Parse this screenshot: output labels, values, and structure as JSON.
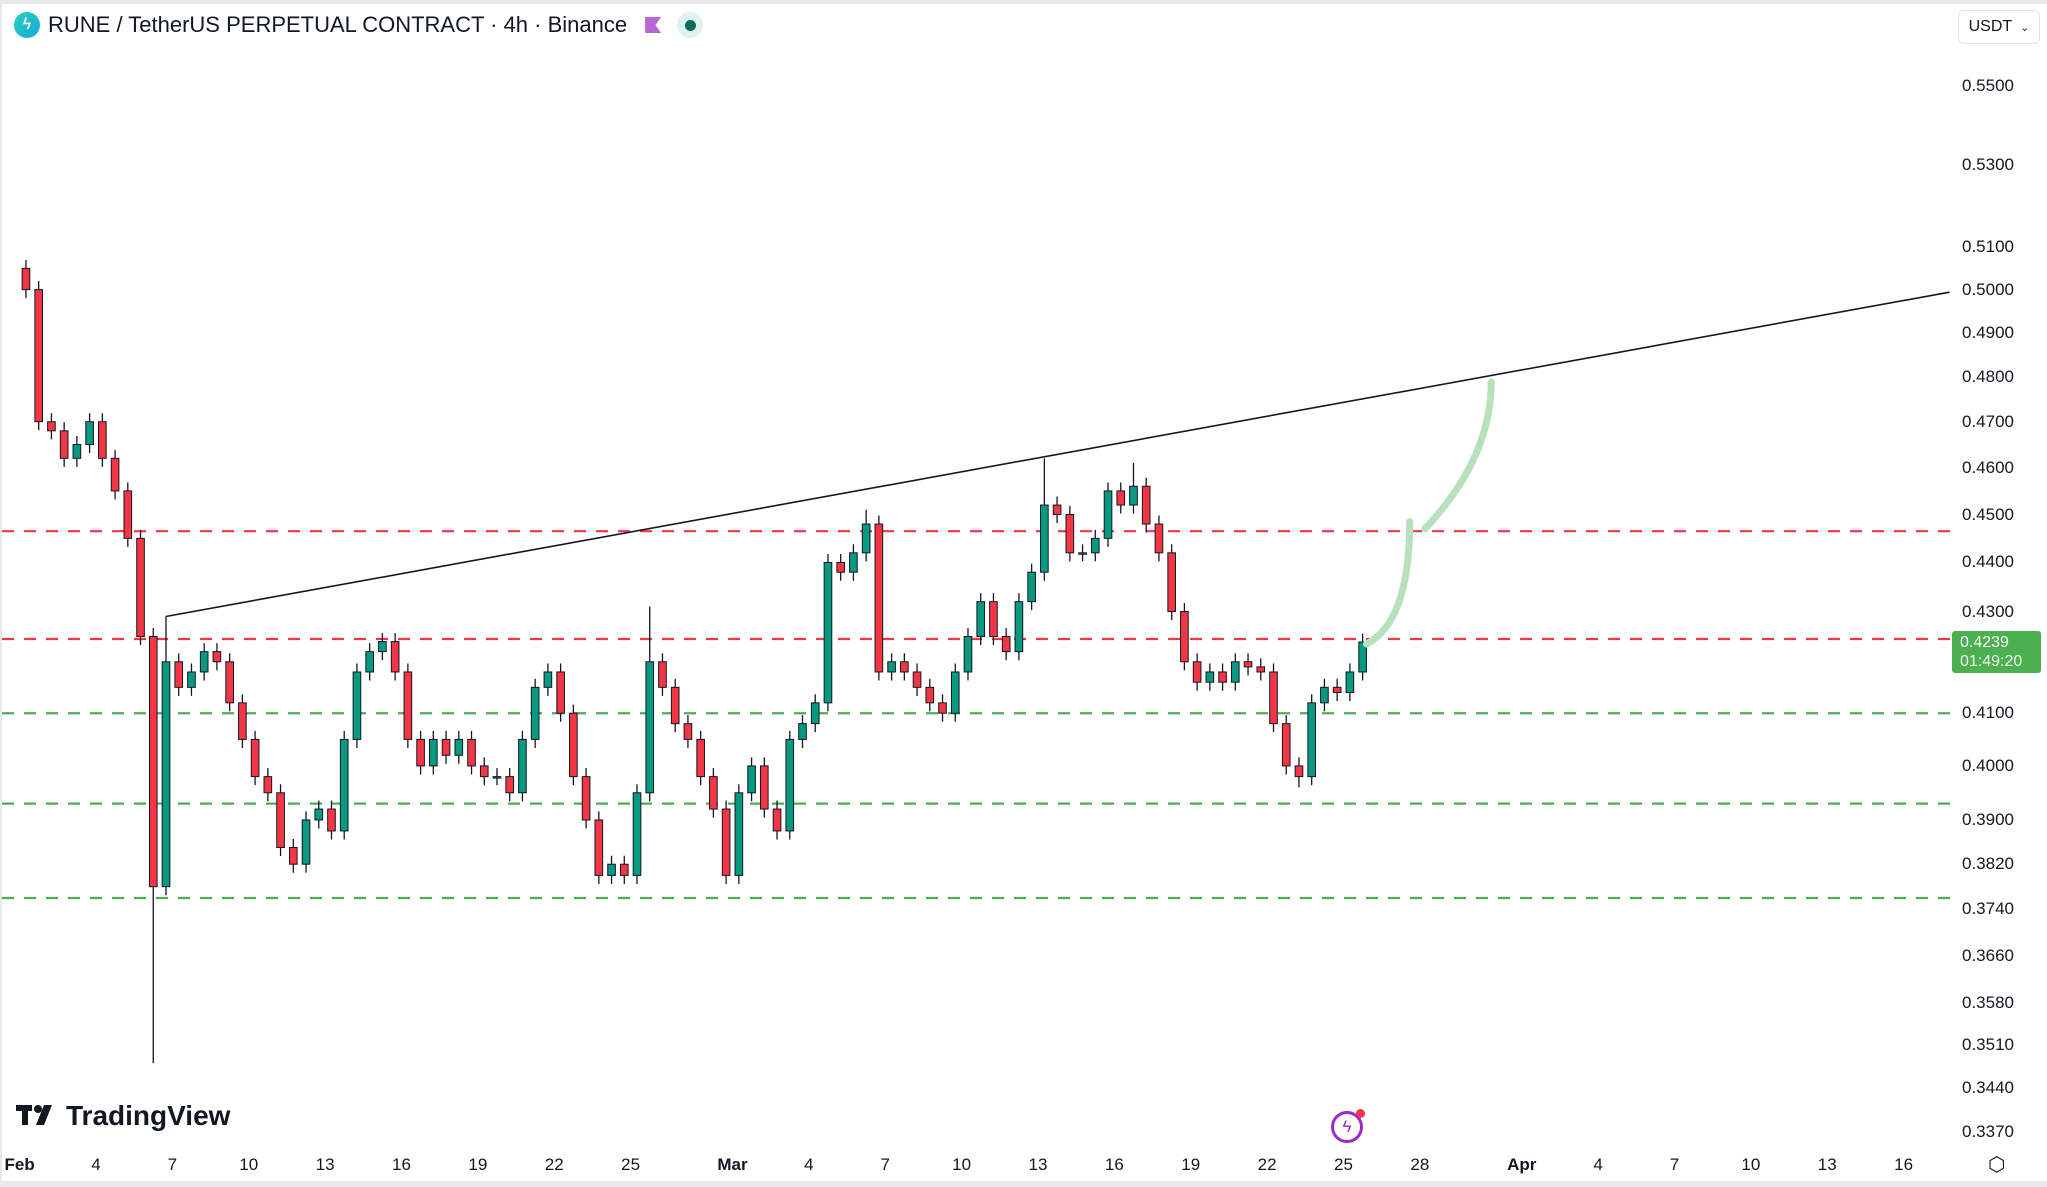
{
  "header": {
    "title": "RUNE / TetherUS PERPETUAL CONTRACT · 4h · Binance",
    "symbol_icon": "rune-logo-icon",
    "currency_button": "USDT"
  },
  "branding": {
    "logo_text": "TradingView"
  },
  "price_tag": {
    "price": "0.4239",
    "countdown": "01:49:20",
    "color": "#4caf50"
  },
  "colors": {
    "up": "#089981",
    "down": "#f23645",
    "resistance": "#f23645",
    "support": "#4caf50",
    "trendline": "#131722",
    "projection": "#b7e1bc"
  },
  "chart_data": {
    "type": "candlestick",
    "title": "RUNE / TetherUS PERPETUAL CONTRACT · 4h · Binance",
    "scale": "log",
    "ylim": [
      0.337,
      0.55
    ],
    "y_ticks": [
      "0.5500",
      "0.5300",
      "0.5100",
      "0.5000",
      "0.4900",
      "0.4800",
      "0.4700",
      "0.4600",
      "0.4500",
      "0.4400",
      "0.4300",
      "0.4100",
      "0.4000",
      "0.3900",
      "0.3820",
      "0.3740",
      "0.3660",
      "0.3580",
      "0.3510",
      "0.3440",
      "0.3370"
    ],
    "x_ticks": [
      {
        "label": "Feb",
        "day": 0,
        "bold": true
      },
      {
        "label": "4",
        "day": 3
      },
      {
        "label": "7",
        "day": 6
      },
      {
        "label": "10",
        "day": 9
      },
      {
        "label": "13",
        "day": 12
      },
      {
        "label": "16",
        "day": 15
      },
      {
        "label": "19",
        "day": 18
      },
      {
        "label": "22",
        "day": 21
      },
      {
        "label": "25",
        "day": 24
      },
      {
        "label": "Mar",
        "day": 28,
        "bold": true
      },
      {
        "label": "4",
        "day": 31
      },
      {
        "label": "7",
        "day": 34
      },
      {
        "label": "10",
        "day": 37
      },
      {
        "label": "13",
        "day": 40
      },
      {
        "label": "16",
        "day": 43
      },
      {
        "label": "19",
        "day": 46
      },
      {
        "label": "22",
        "day": 49
      },
      {
        "label": "25",
        "day": 52
      },
      {
        "label": "28",
        "day": 55
      },
      {
        "label": "Apr",
        "day": 59,
        "bold": true
      },
      {
        "label": "4",
        "day": 62
      },
      {
        "label": "7",
        "day": 65
      },
      {
        "label": "10",
        "day": 68
      },
      {
        "label": "13",
        "day": 71
      },
      {
        "label": "16",
        "day": 74
      }
    ],
    "x_unit": "days since Feb 1",
    "candle_step_days": 0.5,
    "open_first": 0.505,
    "closes": [
      0.5,
      0.47,
      0.468,
      0.462,
      0.465,
      0.47,
      0.462,
      0.455,
      0.445,
      0.425,
      0.378,
      0.42,
      0.415,
      0.418,
      0.422,
      0.42,
      0.412,
      0.405,
      0.398,
      0.395,
      0.385,
      0.382,
      0.39,
      0.392,
      0.388,
      0.405,
      0.418,
      0.422,
      0.424,
      0.418,
      0.405,
      0.4,
      0.405,
      0.402,
      0.405,
      0.4,
      0.398,
      0.398,
      0.395,
      0.405,
      0.415,
      0.418,
      0.41,
      0.398,
      0.39,
      0.38,
      0.382,
      0.38,
      0.395,
      0.42,
      0.415,
      0.408,
      0.405,
      0.398,
      0.392,
      0.38,
      0.395,
      0.4,
      0.392,
      0.388,
      0.405,
      0.408,
      0.412,
      0.44,
      0.438,
      0.442,
      0.448,
      0.418,
      0.42,
      0.418,
      0.415,
      0.412,
      0.41,
      0.418,
      0.425,
      0.432,
      0.425,
      0.422,
      0.432,
      0.438,
      0.452,
      0.45,
      0.442,
      0.442,
      0.445,
      0.455,
      0.452,
      0.456,
      0.448,
      0.442,
      0.43,
      0.42,
      0.416,
      0.418,
      0.416,
      0.42,
      0.419,
      0.418,
      0.408,
      0.4,
      0.398,
      0.412,
      0.415,
      0.414,
      0.418,
      0.4239
    ],
    "wick_overrides": [
      {
        "index": 0,
        "high": 0.507
      },
      {
        "index": 10,
        "low": 0.348
      },
      {
        "index": 11,
        "high": 0.429
      },
      {
        "index": 49,
        "high": 0.431
      },
      {
        "index": 66,
        "high": 0.451
      },
      {
        "index": 80,
        "high": 0.462
      },
      {
        "index": 87,
        "high": 0.461
      },
      {
        "index": 100,
        "low": 0.396
      }
    ],
    "trendline": {
      "from": {
        "day": 5.74,
        "price": 0.429
      },
      "to": {
        "day": 75.8,
        "price": 0.4994
      }
    },
    "horizontal_levels": [
      {
        "price": 0.4465,
        "kind": "resistance"
      },
      {
        "price": 0.4245,
        "kind": "resistance"
      },
      {
        "price": 0.41,
        "kind": "support"
      },
      {
        "price": 0.393,
        "kind": "support"
      },
      {
        "price": 0.376,
        "kind": "support"
      }
    ],
    "projection": [
      {
        "from": {
          "day": 52.9,
          "price": 0.4235
        },
        "ctrl": {
          "day": 54.6,
          "price": 0.428
        },
        "to": {
          "day": 54.6,
          "price": 0.4485
        }
      },
      {
        "from": {
          "day": 55.2,
          "price": 0.447
        },
        "ctrl": {
          "day": 57.8,
          "price": 0.462
        },
        "to": {
          "day": 57.8,
          "price": 0.4788
        }
      }
    ]
  }
}
